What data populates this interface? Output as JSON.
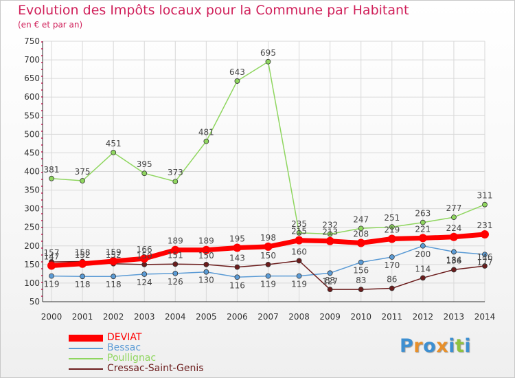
{
  "chart_data": {
    "type": "line",
    "title": "Evolution des Impôts locaux pour la Commune par Habitant",
    "subtitle": "(en € et par an)",
    "x": [
      "2000",
      "2001",
      "2002",
      "2003",
      "2004",
      "2005",
      "2006",
      "2007",
      "2008",
      "2009",
      "2010",
      "2011",
      "2012",
      "2013",
      "2014"
    ],
    "ylim": [
      50,
      750
    ],
    "yticks": [
      50,
      100,
      150,
      200,
      250,
      300,
      350,
      400,
      450,
      500,
      550,
      600,
      650,
      700,
      750
    ],
    "grid": true,
    "legend_position": "bottom-left",
    "series": [
      {
        "name": "DEVIAT",
        "color": "#ff0000",
        "values": [
          147,
          152,
          159,
          166,
          189,
          189,
          195,
          198,
          215,
          213,
          208,
          219,
          221,
          224,
          231
        ]
      },
      {
        "name": "Bessac",
        "color": "#5b9bd5",
        "values": [
          119,
          118,
          118,
          124,
          126,
          130,
          116,
          119,
          119,
          127,
          156,
          170,
          200,
          184,
          177
        ]
      },
      {
        "name": "Poullignac",
        "color": "#8fd65f",
        "values": [
          381,
          375,
          451,
          395,
          373,
          481,
          643,
          695,
          235,
          232,
          247,
          251,
          263,
          277,
          311
        ]
      },
      {
        "name": "Cressac-Saint-Genis",
        "color": "#6b1c1c",
        "values": [
          157,
          158,
          152,
          150,
          151,
          150,
          143,
          150,
          160,
          83,
          83,
          86,
          114,
          136,
          146
        ]
      }
    ]
  },
  "logo": {
    "letters": [
      "P",
      "r",
      "o",
      "x",
      "i",
      "t",
      "i"
    ],
    "colors": [
      "#3d8fd1",
      "#e8902a",
      "#3d8fd1",
      "#e8902a",
      "#3d8fd1",
      "#8fc23f",
      "#3d8fd1"
    ]
  }
}
